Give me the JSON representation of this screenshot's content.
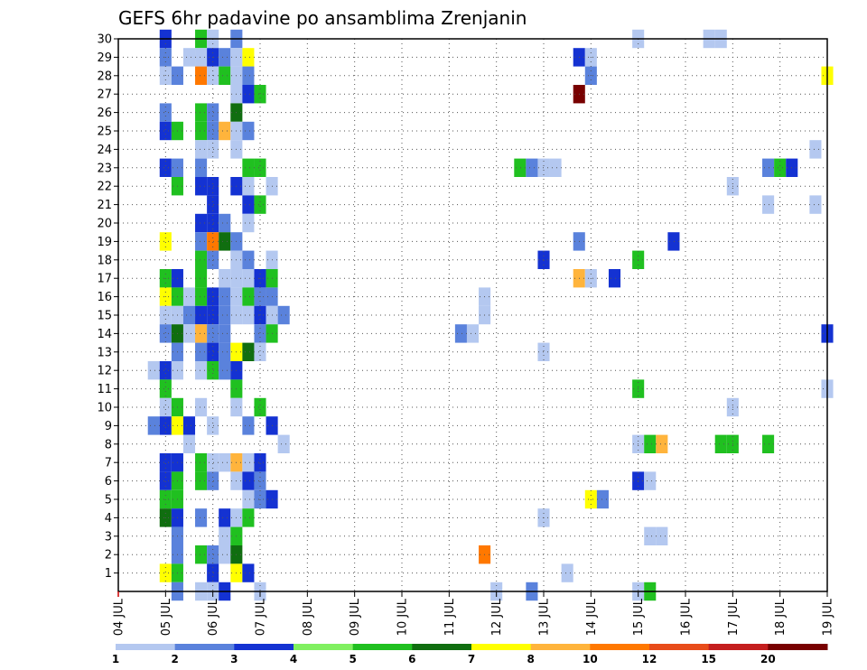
{
  "chart_data": {
    "type": "heatmap",
    "title": "GEFS 6hr padavine po ansamblima Zrenjanin",
    "x_ticks": [
      "04 JUL",
      "05 JUL",
      "06 JUL",
      "07 JUL",
      "08 JUL",
      "09 JUL",
      "10 JUL",
      "11 JUL",
      "12 JUL",
      "13 JUL",
      "14 JUL",
      "15 JUL",
      "16 JUL",
      "17 JUL",
      "18 JUL",
      "19 JUL"
    ],
    "y_ticks": [
      "1",
      "2",
      "3",
      "4",
      "5",
      "6",
      "7",
      "8",
      "9",
      "10",
      "11",
      "12",
      "13",
      "14",
      "15",
      "16",
      "17",
      "18",
      "19",
      "20",
      "21",
      "22",
      "23",
      "24",
      "25",
      "26",
      "27",
      "28",
      "29",
      "30"
    ],
    "xlim_days": [
      4,
      19
    ],
    "ylim_members": [
      0,
      30
    ],
    "grid": true,
    "colorbar": {
      "labels": [
        "1",
        "2",
        "3",
        "4",
        "5",
        "6",
        "7",
        "8",
        "10",
        "12",
        "15",
        "20"
      ],
      "colors": [
        "#b4c8f0",
        "#5a82dc",
        "#1432d2",
        "#80f060",
        "#20c020",
        "#106e10",
        "#ffff00",
        "#ffb43c",
        "#ff7800",
        "#e84c1a",
        "#c41e1e",
        "#780000"
      ]
    },
    "cells": [
      [
        30,
        5.0,
        3
      ],
      [
        30,
        5.75,
        5
      ],
      [
        30,
        6.0,
        1
      ],
      [
        30,
        6.5,
        2
      ],
      [
        30,
        15.0,
        1
      ],
      [
        30,
        16.5,
        1
      ],
      [
        30,
        16.75,
        1
      ],
      [
        29,
        5.0,
        2
      ],
      [
        29,
        5.75,
        1
      ],
      [
        29,
        6.0,
        3
      ],
      [
        29,
        6.25,
        2
      ],
      [
        29,
        5.5,
        1
      ],
      [
        29,
        6.5,
        1
      ],
      [
        29,
        6.75,
        7
      ],
      [
        29,
        13.75,
        3
      ],
      [
        29,
        14.0,
        1
      ],
      [
        28,
        5.0,
        1
      ],
      [
        28,
        5.25,
        2
      ],
      [
        28,
        5.75,
        10
      ],
      [
        28,
        6.0,
        1
      ],
      [
        28,
        6.25,
        5
      ],
      [
        28,
        6.5,
        1
      ],
      [
        28,
        6.75,
        2
      ],
      [
        28,
        14.0,
        2
      ],
      [
        28,
        19.0,
        7
      ],
      [
        27,
        6.5,
        1
      ],
      [
        27,
        6.75,
        3
      ],
      [
        27,
        7.0,
        5
      ],
      [
        27,
        13.75,
        20
      ],
      [
        26,
        5.0,
        2
      ],
      [
        26,
        5.75,
        5
      ],
      [
        26,
        6.0,
        2
      ],
      [
        26,
        6.5,
        6
      ],
      [
        25,
        5.0,
        3
      ],
      [
        25,
        5.25,
        5
      ],
      [
        25,
        5.75,
        5
      ],
      [
        25,
        6.0,
        2
      ],
      [
        25,
        6.25,
        8
      ],
      [
        25,
        6.5,
        1
      ],
      [
        25,
        6.75,
        2
      ],
      [
        24,
        5.75,
        1
      ],
      [
        24,
        6.0,
        1
      ],
      [
        24,
        6.5,
        1
      ],
      [
        24,
        18.75,
        1
      ],
      [
        23,
        5.0,
        3
      ],
      [
        23,
        5.25,
        2
      ],
      [
        23,
        5.75,
        2
      ],
      [
        23,
        6.75,
        5
      ],
      [
        23,
        7.0,
        5
      ],
      [
        23,
        12.5,
        5
      ],
      [
        23,
        12.75,
        2
      ],
      [
        23,
        13.0,
        1
      ],
      [
        23,
        13.25,
        1
      ],
      [
        23,
        17.75,
        2
      ],
      [
        23,
        18.0,
        5
      ],
      [
        23,
        18.25,
        3
      ],
      [
        22,
        5.25,
        5
      ],
      [
        22,
        5.75,
        3
      ],
      [
        22,
        6.0,
        3
      ],
      [
        22,
        6.5,
        3
      ],
      [
        22,
        6.75,
        1
      ],
      [
        22,
        7.25,
        1
      ],
      [
        22,
        17.0,
        1
      ],
      [
        21,
        6.0,
        3
      ],
      [
        21,
        6.75,
        3
      ],
      [
        21,
        7.0,
        5
      ],
      [
        21,
        17.75,
        1
      ],
      [
        21,
        18.75,
        1
      ],
      [
        20,
        5.75,
        3
      ],
      [
        20,
        6.0,
        3
      ],
      [
        20,
        6.25,
        2
      ],
      [
        20,
        6.75,
        1
      ],
      [
        19,
        5.0,
        7
      ],
      [
        19,
        5.75,
        2
      ],
      [
        19,
        6.0,
        10
      ],
      [
        19,
        6.25,
        6
      ],
      [
        19,
        6.5,
        2
      ],
      [
        19,
        13.75,
        2
      ],
      [
        19,
        15.75,
        3
      ],
      [
        18,
        5.75,
        5
      ],
      [
        18,
        6.0,
        2
      ],
      [
        18,
        6.5,
        1
      ],
      [
        18,
        6.75,
        2
      ],
      [
        18,
        7.25,
        1
      ],
      [
        18,
        13.0,
        3
      ],
      [
        18,
        15.0,
        5
      ],
      [
        17,
        5.0,
        5
      ],
      [
        17,
        5.25,
        3
      ],
      [
        17,
        5.75,
        5
      ],
      [
        17,
        6.25,
        1
      ],
      [
        17,
        6.5,
        1
      ],
      [
        17,
        6.75,
        1
      ],
      [
        17,
        7.0,
        3
      ],
      [
        17,
        7.25,
        5
      ],
      [
        17,
        13.75,
        8
      ],
      [
        17,
        14.0,
        1
      ],
      [
        17,
        14.5,
        3
      ],
      [
        16,
        5.0,
        7
      ],
      [
        16,
        5.25,
        5
      ],
      [
        16,
        5.5,
        1
      ],
      [
        16,
        5.75,
        5
      ],
      [
        16,
        6.0,
        3
      ],
      [
        16,
        6.25,
        2
      ],
      [
        16,
        6.5,
        1
      ],
      [
        16,
        6.75,
        5
      ],
      [
        16,
        7.0,
        2
      ],
      [
        16,
        7.25,
        2
      ],
      [
        16,
        11.75,
        1
      ],
      [
        15,
        5.0,
        1
      ],
      [
        15,
        5.25,
        1
      ],
      [
        15,
        5.5,
        2
      ],
      [
        15,
        5.75,
        3
      ],
      [
        15,
        6.0,
        3
      ],
      [
        15,
        6.25,
        2
      ],
      [
        15,
        6.5,
        1
      ],
      [
        15,
        6.75,
        1
      ],
      [
        15,
        7.0,
        3
      ],
      [
        15,
        7.25,
        1
      ],
      [
        15,
        7.5,
        2
      ],
      [
        15,
        11.75,
        1
      ],
      [
        14,
        5.0,
        2
      ],
      [
        14,
        5.25,
        6
      ],
      [
        14,
        5.5,
        1
      ],
      [
        14,
        5.75,
        8
      ],
      [
        14,
        6.0,
        2
      ],
      [
        14,
        6.25,
        2
      ],
      [
        14,
        7.0,
        2
      ],
      [
        14,
        7.25,
        5
      ],
      [
        14,
        11.25,
        2
      ],
      [
        14,
        11.5,
        1
      ],
      [
        14,
        19.0,
        3
      ],
      [
        13,
        5.25,
        2
      ],
      [
        13,
        5.75,
        2
      ],
      [
        13,
        6.0,
        3
      ],
      [
        13,
        6.25,
        2
      ],
      [
        13,
        6.5,
        7
      ],
      [
        13,
        6.75,
        6
      ],
      [
        13,
        7.0,
        1
      ],
      [
        13,
        13.0,
        1
      ],
      [
        12,
        4.75,
        1
      ],
      [
        12,
        5.0,
        3
      ],
      [
        12,
        5.25,
        1
      ],
      [
        12,
        5.75,
        1
      ],
      [
        12,
        6.0,
        5
      ],
      [
        12,
        6.25,
        2
      ],
      [
        12,
        6.5,
        3
      ],
      [
        11,
        5.0,
        5
      ],
      [
        11,
        6.5,
        5
      ],
      [
        11,
        15.0,
        5
      ],
      [
        11,
        19.0,
        1
      ],
      [
        10,
        5.0,
        1
      ],
      [
        10,
        5.25,
        5
      ],
      [
        10,
        5.75,
        1
      ],
      [
        10,
        6.5,
        1
      ],
      [
        10,
        7.0,
        5
      ],
      [
        10,
        17.0,
        1
      ],
      [
        9,
        4.75,
        2
      ],
      [
        9,
        5.0,
        3
      ],
      [
        9,
        5.25,
        7
      ],
      [
        9,
        5.5,
        3
      ],
      [
        9,
        6.0,
        1
      ],
      [
        9,
        6.75,
        2
      ],
      [
        9,
        7.25,
        3
      ],
      [
        8,
        5.5,
        1
      ],
      [
        8,
        7.5,
        1
      ],
      [
        8,
        15.0,
        1
      ],
      [
        8,
        15.25,
        5
      ],
      [
        8,
        15.5,
        8
      ],
      [
        8,
        16.75,
        5
      ],
      [
        8,
        17.0,
        5
      ],
      [
        8,
        17.75,
        5
      ],
      [
        7,
        5.0,
        3
      ],
      [
        7,
        5.25,
        3
      ],
      [
        7,
        5.75,
        5
      ],
      [
        7,
        6.0,
        1
      ],
      [
        7,
        6.25,
        1
      ],
      [
        7,
        6.5,
        8
      ],
      [
        7,
        6.75,
        1
      ],
      [
        7,
        7.0,
        3
      ],
      [
        6,
        5.0,
        3
      ],
      [
        6,
        5.25,
        5
      ],
      [
        6,
        5.75,
        5
      ],
      [
        6,
        6.0,
        2
      ],
      [
        6,
        6.5,
        1
      ],
      [
        6,
        6.75,
        3
      ],
      [
        6,
        7.0,
        2
      ],
      [
        6,
        15.0,
        3
      ],
      [
        6,
        15.25,
        1
      ],
      [
        5,
        5.0,
        5
      ],
      [
        5,
        5.25,
        5
      ],
      [
        5,
        6.75,
        1
      ],
      [
        5,
        7.0,
        2
      ],
      [
        5,
        7.25,
        3
      ],
      [
        5,
        14.0,
        7
      ],
      [
        5,
        14.25,
        2
      ],
      [
        4,
        5.0,
        6
      ],
      [
        4,
        5.25,
        3
      ],
      [
        4,
        5.75,
        2
      ],
      [
        4,
        6.25,
        3
      ],
      [
        4,
        6.5,
        1
      ],
      [
        4,
        6.75,
        5
      ],
      [
        4,
        13.0,
        1
      ],
      [
        3,
        5.25,
        2
      ],
      [
        3,
        6.25,
        1
      ],
      [
        3,
        6.5,
        5
      ],
      [
        3,
        15.25,
        1
      ],
      [
        3,
        15.5,
        1
      ],
      [
        2,
        5.25,
        2
      ],
      [
        2,
        5.75,
        5
      ],
      [
        2,
        6.0,
        2
      ],
      [
        2,
        6.25,
        1
      ],
      [
        2,
        6.5,
        6
      ],
      [
        2,
        11.75,
        10
      ],
      [
        1,
        5.0,
        7
      ],
      [
        1,
        5.25,
        5
      ],
      [
        1,
        6.0,
        3
      ],
      [
        1,
        6.5,
        7
      ],
      [
        1,
        6.75,
        3
      ],
      [
        1,
        13.5,
        1
      ],
      [
        0,
        5.25,
        2
      ],
      [
        0,
        5.75,
        1
      ],
      [
        0,
        6.0,
        1
      ],
      [
        0,
        6.25,
        3
      ],
      [
        0,
        7.0,
        1
      ],
      [
        0,
        12.0,
        1
      ],
      [
        0,
        12.75,
        2
      ],
      [
        0,
        15.0,
        1
      ],
      [
        0,
        15.25,
        5
      ]
    ]
  }
}
